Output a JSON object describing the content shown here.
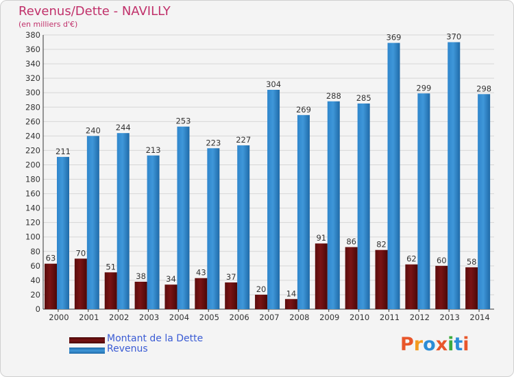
{
  "title": "Revenus/Dette - NAVILLY",
  "subtitle": "(en milliers d'€)",
  "logo": {
    "text": "Proxiti",
    "colors": [
      "#e8562a",
      "#f39b1f",
      "#2b8cd6",
      "#e8562a",
      "#3cab3e",
      "#2b8cd6",
      "#e8562a"
    ]
  },
  "legend": {
    "dette_label": "Montant de la Dette",
    "revenus_label": "Revenus"
  },
  "colors": {
    "dette": "#7a1414",
    "revenus": "#3f97d9",
    "title": "#c0306a",
    "legend_text": "#3a5bd4"
  },
  "chart_data": {
    "type": "bar",
    "categories": [
      "2000",
      "2001",
      "2002",
      "2003",
      "2004",
      "2005",
      "2006",
      "2007",
      "2008",
      "2009",
      "2010",
      "2011",
      "2012",
      "2013",
      "2014"
    ],
    "series": [
      {
        "name": "Montant de la Dette",
        "values": [
          63,
          70,
          51,
          38,
          34,
          43,
          37,
          20,
          14,
          91,
          86,
          82,
          62,
          60,
          58
        ]
      },
      {
        "name": "Revenus",
        "values": [
          211,
          240,
          244,
          213,
          253,
          223,
          227,
          304,
          269,
          288,
          285,
          369,
          299,
          370,
          298
        ]
      }
    ],
    "ylim": [
      0,
      380
    ],
    "ytick_step": 20,
    "grid": true,
    "legend_position": "bottom-left"
  }
}
